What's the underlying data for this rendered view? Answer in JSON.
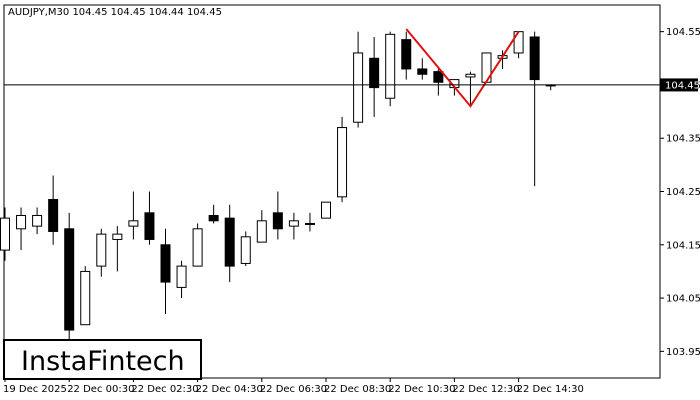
{
  "header": {
    "symbol_line": "AUDJPY,M30  104.45 104.45 104.44 104.45"
  },
  "logo": {
    "text": "InstaFintech"
  },
  "colors": {
    "background": "#ffffff",
    "candle_stroke": "#000000",
    "bull_fill": "#ffffff",
    "bear_fill": "#000000",
    "pattern_line": "#e01010",
    "price_badge_bg": "#000000",
    "price_badge_text": "#ffffff"
  },
  "chart_data": {
    "type": "candlestick",
    "title": "AUDJPY,M30  104.45 104.45 104.44 104.45",
    "pattern": "Double Top",
    "ylim": [
      103.9,
      104.6
    ],
    "yticks": [
      "104.55",
      "104.45",
      "104.35",
      "104.25",
      "104.15",
      "104.05",
      "103.95"
    ],
    "current_price": "104.45",
    "current_price_value": 104.45,
    "x_labels": [
      {
        "index": 0,
        "label": "19 Dec 2025"
      },
      {
        "index": 4,
        "label": "22 Dec 00:30"
      },
      {
        "index": 8,
        "label": "22 Dec 02:30"
      },
      {
        "index": 12,
        "label": "22 Dec 04:30"
      },
      {
        "index": 16,
        "label": "22 Dec 06:30"
      },
      {
        "index": 20,
        "label": "22 Dec 08:30"
      },
      {
        "index": 24,
        "label": "22 Dec 10:30"
      },
      {
        "index": 28,
        "label": "22 Dec 12:30"
      },
      {
        "index": 32,
        "label": "22 Dec 14:30"
      }
    ],
    "candles": [
      {
        "o": 104.14,
        "h": 104.22,
        "l": 104.12,
        "c": 104.2
      },
      {
        "o": 104.18,
        "h": 104.22,
        "l": 104.14,
        "c": 104.205
      },
      {
        "o": 104.185,
        "h": 104.22,
        "l": 104.17,
        "c": 104.205
      },
      {
        "o": 104.235,
        "h": 104.28,
        "l": 104.15,
        "c": 104.175
      },
      {
        "o": 104.18,
        "h": 104.21,
        "l": 103.97,
        "c": 103.99
      },
      {
        "o": 104.0,
        "h": 104.11,
        "l": 104.0,
        "c": 104.1
      },
      {
        "o": 104.11,
        "h": 104.18,
        "l": 104.09,
        "c": 104.17
      },
      {
        "o": 104.16,
        "h": 104.185,
        "l": 104.1,
        "c": 104.17
      },
      {
        "o": 104.185,
        "h": 104.25,
        "l": 104.16,
        "c": 104.195
      },
      {
        "o": 104.21,
        "h": 104.25,
        "l": 104.15,
        "c": 104.16
      },
      {
        "o": 104.15,
        "h": 104.18,
        "l": 104.02,
        "c": 104.08
      },
      {
        "o": 104.07,
        "h": 104.12,
        "l": 104.05,
        "c": 104.11
      },
      {
        "o": 104.11,
        "h": 104.19,
        "l": 104.11,
        "c": 104.18
      },
      {
        "o": 104.205,
        "h": 104.225,
        "l": 104.19,
        "c": 104.195
      },
      {
        "o": 104.2,
        "h": 104.225,
        "l": 104.08,
        "c": 104.11
      },
      {
        "o": 104.115,
        "h": 104.175,
        "l": 104.11,
        "c": 104.165
      },
      {
        "o": 104.155,
        "h": 104.215,
        "l": 104.155,
        "c": 104.195
      },
      {
        "o": 104.21,
        "h": 104.25,
        "l": 104.16,
        "c": 104.18
      },
      {
        "o": 104.185,
        "h": 104.21,
        "l": 104.16,
        "c": 104.195
      },
      {
        "o": 104.19,
        "h": 104.21,
        "l": 104.175,
        "c": 104.19
      },
      {
        "o": 104.2,
        "h": 104.23,
        "l": 104.2,
        "c": 104.23
      },
      {
        "o": 104.24,
        "h": 104.39,
        "l": 104.23,
        "c": 104.37
      },
      {
        "o": 104.38,
        "h": 104.55,
        "l": 104.37,
        "c": 104.51
      },
      {
        "o": 104.5,
        "h": 104.54,
        "l": 104.39,
        "c": 104.445
      },
      {
        "o": 104.425,
        "h": 104.55,
        "l": 104.41,
        "c": 104.545
      },
      {
        "o": 104.535,
        "h": 104.55,
        "l": 104.46,
        "c": 104.48
      },
      {
        "o": 104.48,
        "h": 104.5,
        "l": 104.46,
        "c": 104.47
      },
      {
        "o": 104.475,
        "h": 104.48,
        "l": 104.43,
        "c": 104.455
      },
      {
        "o": 104.445,
        "h": 104.46,
        "l": 104.43,
        "c": 104.46
      },
      {
        "o": 104.465,
        "h": 104.475,
        "l": 104.41,
        "c": 104.47
      },
      {
        "o": 104.455,
        "h": 104.51,
        "l": 104.455,
        "c": 104.51
      },
      {
        "o": 104.5,
        "h": 104.515,
        "l": 104.48,
        "c": 104.505
      },
      {
        "o": 104.51,
        "h": 104.55,
        "l": 104.5,
        "c": 104.55
      },
      {
        "o": 104.54,
        "h": 104.55,
        "l": 104.26,
        "c": 104.46
      },
      {
        "o": 104.45,
        "h": 104.45,
        "l": 104.44,
        "c": 104.45
      }
    ],
    "pattern_points": [
      {
        "index": 25,
        "price": 104.555
      },
      {
        "index": 29,
        "price": 104.41
      },
      {
        "index": 32,
        "price": 104.55
      }
    ],
    "grid": false
  }
}
